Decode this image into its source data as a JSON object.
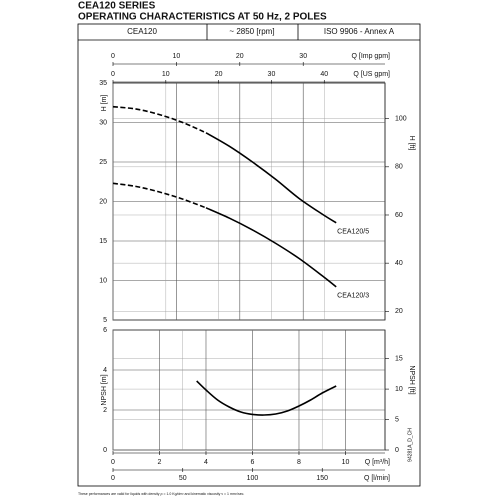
{
  "title": "CEA120 SERIES",
  "subtitle": "OPERATING CHARACTERISTICS AT 50 Hz, 2 POLES",
  "header": [
    "CEA120",
    "~ 2850 [rpm]",
    "ISO 9906 - Annex A"
  ],
  "footnote": "These performances are valid for liquids with density ρ = 1.0 Kg/dm³ and kinematic viscosity ν = 1 mm²/sec.",
  "code": "94281A_D_CH",
  "chart_data": [
    {
      "type": "line",
      "grid": true,
      "xlim": [
        0,
        11.7
      ],
      "x_axes": [
        {
          "label": "Q [Imp gpm]",
          "xlim": [
            0,
            42.9
          ],
          "xticks": [
            0,
            10,
            20,
            30
          ]
        },
        {
          "label": "Q [US gpm]",
          "xlim": [
            0,
            51.5
          ],
          "xticks": [
            0,
            10,
            20,
            30,
            40
          ]
        }
      ],
      "ylabel": "H [m]",
      "ylim": [
        5,
        35
      ],
      "yticks": [
        5,
        10,
        15,
        20,
        25,
        30,
        35
      ],
      "y2label": "H [ft]",
      "y2lim": [
        16.4,
        114.8
      ],
      "y2ticks": [
        20,
        40,
        60,
        80,
        100
      ],
      "x": [
        0,
        1,
        2,
        3,
        4,
        5,
        6,
        7,
        8,
        9,
        9.6
      ],
      "series": [
        {
          "name": "CEA120/5",
          "color": "#000000",
          "dashed_to": 4,
          "values": [
            32,
            31.7,
            31.0,
            30.0,
            28.7,
            27.0,
            25.0,
            22.8,
            20.4,
            18.4,
            17.3
          ]
        },
        {
          "name": "CEA120/3",
          "color": "#000000",
          "dashed_to": 4,
          "values": [
            22.3,
            21.9,
            21.2,
            20.3,
            19.2,
            17.9,
            16.4,
            14.7,
            12.8,
            10.6,
            9.2
          ]
        }
      ]
    },
    {
      "type": "line",
      "grid": true,
      "xlim": [
        0,
        11.7
      ],
      "x_axes": [
        {
          "label": "Q [m³/h]",
          "xlim": [
            0,
            11.7
          ],
          "xticks": [
            0,
            2,
            4,
            6,
            8,
            10
          ]
        },
        {
          "label": "Q [l/min]",
          "xlim": [
            0,
            195
          ],
          "xticks": [
            0,
            50,
            100,
            150
          ]
        }
      ],
      "ylabel": "NPSH [m]",
      "ylim": [
        0,
        6
      ],
      "yticks": [
        0,
        2,
        4,
        6
      ],
      "y2label": "NPSH [ft]",
      "y2lim": [
        0,
        19.7
      ],
      "y2ticks": [
        0,
        5,
        10,
        15
      ],
      "x": [
        3.6,
        4,
        4.5,
        5,
        5.5,
        6,
        6.5,
        7,
        7.5,
        8,
        8.5,
        9,
        9.6
      ],
      "series": [
        {
          "color": "#000000",
          "values": [
            3.45,
            3.0,
            2.5,
            2.15,
            1.9,
            1.78,
            1.75,
            1.8,
            1.95,
            2.2,
            2.5,
            2.85,
            3.2
          ]
        }
      ]
    }
  ]
}
